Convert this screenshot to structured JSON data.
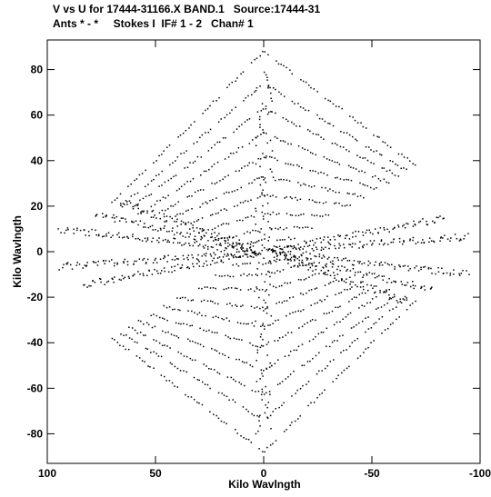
{
  "chart_data": {
    "type": "scatter",
    "title": "V vs U for 17444-31166.X BAND.1   Source:17444-31",
    "subtitle": "Ants * - *     Stokes I  IF# 1 - 2   Chan# 1",
    "xlabel": "Kilo Wavlngth",
    "ylabel": "Kilo Wavlngth",
    "xlim": [
      100,
      -100
    ],
    "ylim": [
      -93,
      93
    ],
    "x_ticks": [
      100,
      50,
      0,
      -50,
      -100
    ],
    "x_tick_labels": [
      "100",
      "50",
      "0",
      "-50",
      "-100"
    ],
    "y_ticks": [
      80,
      60,
      40,
      20,
      0,
      -20,
      -40,
      -60,
      -80
    ],
    "y_tick_labels": [
      "80",
      "60",
      "40",
      "20",
      "0",
      "-20",
      "-40",
      "-60",
      "-80"
    ],
    "grid": false,
    "marker_color": "#000000",
    "arcs": [
      {
        "y0": 88,
        "span": 70
      },
      {
        "y0": 74,
        "span": 66
      },
      {
        "y0": 63,
        "span": 62
      },
      {
        "y0": 52,
        "span": 58
      },
      {
        "y0": 42,
        "span": 52
      },
      {
        "y0": 33,
        "span": 46
      },
      {
        "y0": 25,
        "span": 40
      },
      {
        "y0": 17,
        "span": 30
      },
      {
        "y0": 10,
        "span": 22
      },
      {
        "y0": 5,
        "span": 14
      }
    ],
    "dense_tracks": [
      {
        "angle": 6,
        "from": 2,
        "to": 95
      },
      {
        "angle": -4,
        "from": 2,
        "to": 95
      },
      {
        "angle": 12,
        "from": 4,
        "to": 80
      },
      {
        "angle": -10,
        "from": 4,
        "to": 85
      },
      {
        "angle": 18,
        "from": 5,
        "to": 70
      }
    ]
  }
}
